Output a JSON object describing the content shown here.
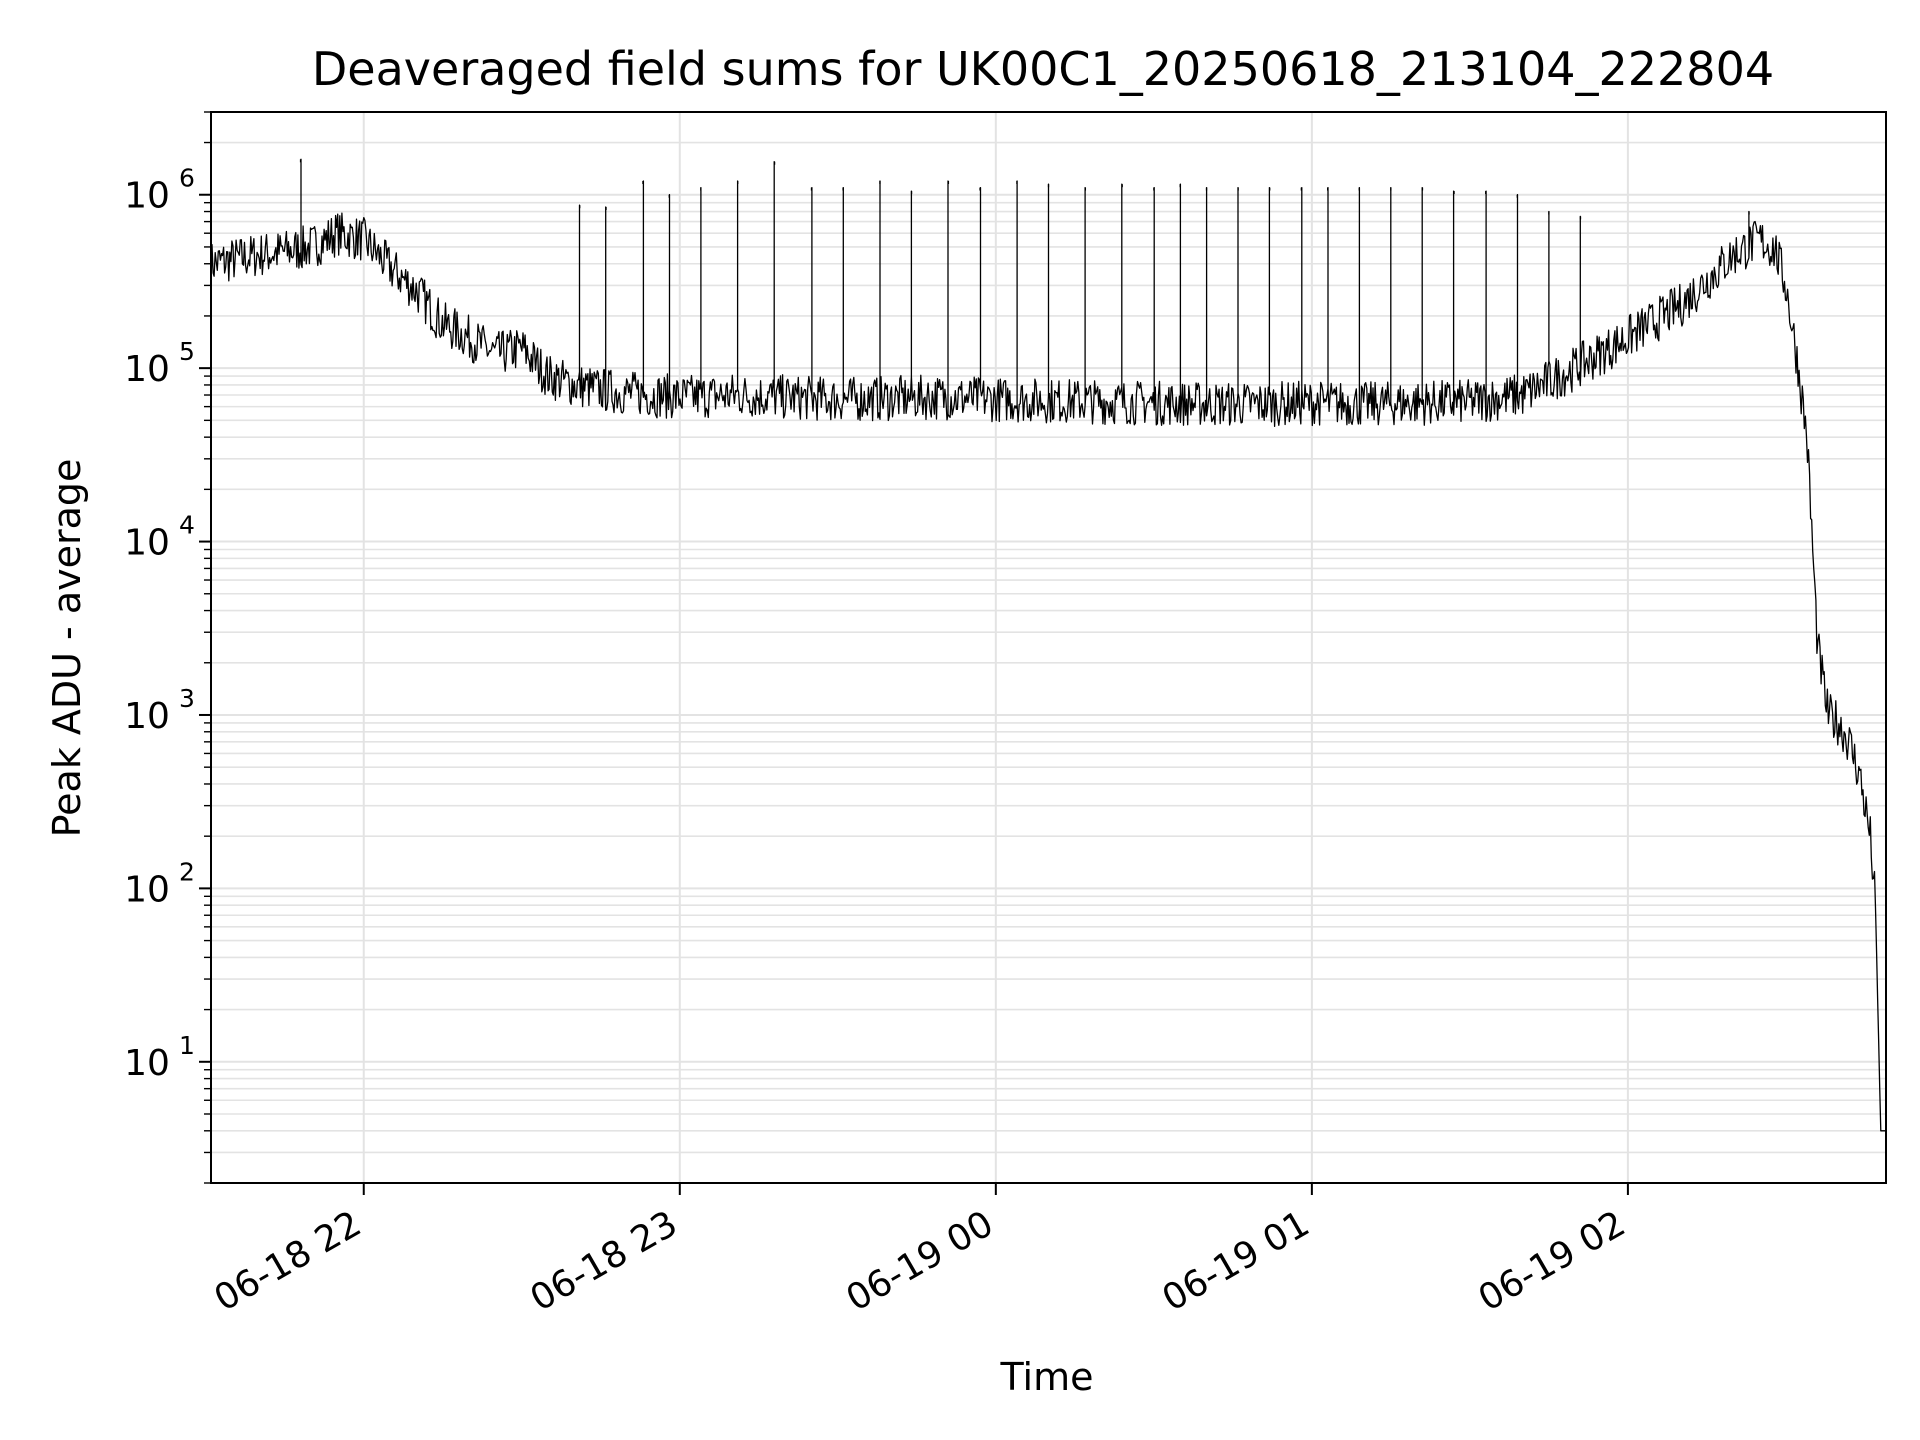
{
  "chart_data": {
    "type": "line",
    "title": "Deaveraged field sums for UK00C1_20250618_213104_222804",
    "xlabel": "Time",
    "ylabel": "Peak ADU - average",
    "yscale": "log",
    "ylim": [
      2,
      3000000
    ],
    "xlim": [
      "2025-06-18 21:31",
      "2025-06-19 02:49"
    ],
    "x_ticks": [
      {
        "value": "2025-06-18 22:00",
        "label": "06-18 22"
      },
      {
        "value": "2025-06-18 23:00",
        "label": "06-18 23"
      },
      {
        "value": "2025-06-19 00:00",
        "label": "06-19 00"
      },
      {
        "value": "2025-06-19 01:00",
        "label": "06-19 01"
      },
      {
        "value": "2025-06-19 02:00",
        "label": "06-19 02"
      }
    ],
    "y_ticks": [
      {
        "value": 10,
        "base": "10",
        "exp": "1"
      },
      {
        "value": 100,
        "base": "10",
        "exp": "2"
      },
      {
        "value": 1000,
        "base": "10",
        "exp": "3"
      },
      {
        "value": 10000,
        "base": "10",
        "exp": "4"
      },
      {
        "value": 100000,
        "base": "10",
        "exp": "5"
      },
      {
        "value": 1000000,
        "base": "10",
        "exp": "6"
      }
    ],
    "grid": true,
    "line_color": "#000000",
    "grid_color": "#e3e3e3",
    "series": [
      {
        "x": [
          "2025-06-18 21:31",
          "2025-06-18 21:35",
          "2025-06-18 21:40",
          "2025-06-18 21:45",
          "2025-06-18 21:50",
          "2025-06-18 21:55",
          "2025-06-18 22:00",
          "2025-06-18 22:05",
          "2025-06-18 22:10",
          "2025-06-18 22:15",
          "2025-06-18 22:20",
          "2025-06-18 22:25",
          "2025-06-18 22:30",
          "2025-06-18 22:35",
          "2025-06-18 22:40",
          "2025-06-18 22:45",
          "2025-06-18 22:50",
          "2025-06-18 22:55",
          "2025-06-18 23:00",
          "2025-06-18 23:10",
          "2025-06-18 23:20",
          "2025-06-18 23:30",
          "2025-06-18 23:40",
          "2025-06-18 23:50",
          "2025-06-19 00:00",
          "2025-06-19 00:10",
          "2025-06-19 00:20",
          "2025-06-19 00:30",
          "2025-06-19 00:40",
          "2025-06-19 00:50",
          "2025-06-19 01:00",
          "2025-06-19 01:10",
          "2025-06-19 01:20",
          "2025-06-19 01:30",
          "2025-06-19 01:40",
          "2025-06-19 01:50",
          "2025-06-19 02:00",
          "2025-06-19 02:10",
          "2025-06-19 02:20",
          "2025-06-19 02:25",
          "2025-06-19 02:28",
          "2025-06-19 02:30",
          "2025-06-19 02:32",
          "2025-06-19 02:34",
          "2025-06-19 02:36",
          "2025-06-19 02:38",
          "2025-06-19 02:40",
          "2025-06-19 02:42",
          "2025-06-19 02:44",
          "2025-06-19 02:46",
          "2025-06-19 02:47",
          "2025-06-19 02:48",
          "2025-06-19 02:49"
        ],
        "values": [
          400000,
          420000,
          450000,
          470000,
          500000,
          600000,
          550000,
          380000,
          280000,
          180000,
          150000,
          120000,
          130000,
          90000,
          80000,
          75000,
          72000,
          70000,
          68000,
          70000,
          68000,
          66000,
          67000,
          68000,
          66000,
          65000,
          64000,
          63000,
          62000,
          62000,
          63000,
          62000,
          63000,
          64000,
          70000,
          100000,
          150000,
          230000,
          450000,
          550000,
          480000,
          300000,
          120000,
          40000,
          2500,
          1000,
          900,
          700,
          450,
          200,
          80,
          4,
          4
        ]
      }
    ],
    "spikes": [
      {
        "x": "2025-06-18 21:48",
        "y": 1600000
      },
      {
        "x": "2025-06-18 22:41",
        "y": 870000
      },
      {
        "x": "2025-06-18 22:46",
        "y": 850000
      },
      {
        "x": "2025-06-18 22:53",
        "y": 1200000
      },
      {
        "x": "2025-06-18 22:58",
        "y": 1000000
      },
      {
        "x": "2025-06-18 23:04",
        "y": 1100000
      },
      {
        "x": "2025-06-18 23:11",
        "y": 1200000
      },
      {
        "x": "2025-06-18 23:18",
        "y": 1550000
      },
      {
        "x": "2025-06-18 23:25",
        "y": 1100000
      },
      {
        "x": "2025-06-18 23:31",
        "y": 1100000
      },
      {
        "x": "2025-06-18 23:38",
        "y": 1200000
      },
      {
        "x": "2025-06-18 23:44",
        "y": 1050000
      },
      {
        "x": "2025-06-18 23:51",
        "y": 1200000
      },
      {
        "x": "2025-06-18 23:57",
        "y": 1100000
      },
      {
        "x": "2025-06-19 00:04",
        "y": 1200000
      },
      {
        "x": "2025-06-19 00:10",
        "y": 1150000
      },
      {
        "x": "2025-06-19 00:17",
        "y": 1100000
      },
      {
        "x": "2025-06-19 00:24",
        "y": 1150000
      },
      {
        "x": "2025-06-19 00:30",
        "y": 1100000
      },
      {
        "x": "2025-06-19 00:35",
        "y": 1150000
      },
      {
        "x": "2025-06-19 00:40",
        "y": 1100000
      },
      {
        "x": "2025-06-19 00:46",
        "y": 1100000
      },
      {
        "x": "2025-06-19 00:52",
        "y": 1100000
      },
      {
        "x": "2025-06-19 00:58",
        "y": 1100000
      },
      {
        "x": "2025-06-19 01:03",
        "y": 1100000
      },
      {
        "x": "2025-06-19 01:09",
        "y": 1100000
      },
      {
        "x": "2025-06-19 01:15",
        "y": 1100000
      },
      {
        "x": "2025-06-19 01:21",
        "y": 1100000
      },
      {
        "x": "2025-06-19 01:27",
        "y": 1050000
      },
      {
        "x": "2025-06-19 01:33",
        "y": 1050000
      },
      {
        "x": "2025-06-19 01:39",
        "y": 1000000
      },
      {
        "x": "2025-06-19 01:45",
        "y": 800000
      },
      {
        "x": "2025-06-19 01:51",
        "y": 750000
      },
      {
        "x": "2025-06-19 02:23",
        "y": 800000
      }
    ]
  }
}
